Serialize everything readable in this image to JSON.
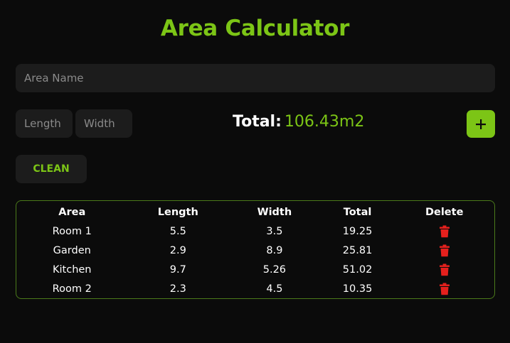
{
  "app": {
    "title": "Area Calculator"
  },
  "form": {
    "area_name_placeholder": "Area Name",
    "length_placeholder": "Length",
    "width_placeholder": "Width",
    "total_label": "Total:",
    "total_value": "106.43m2",
    "add_icon": "plus-icon",
    "clean_label": "CLEAN"
  },
  "colors": {
    "accent": "#7cc516",
    "background": "#0b0b0b",
    "field": "#1c1c1c",
    "delete": "#e5201d"
  },
  "table": {
    "headers": [
      "Area",
      "Length",
      "Width",
      "Total",
      "Delete"
    ],
    "rows": [
      {
        "area": "Room 1",
        "length": "5.5",
        "width": "3.5",
        "total": "19.25",
        "delete_icon": "trash-icon"
      },
      {
        "area": "Garden",
        "length": "2.9",
        "width": "8.9",
        "total": "25.81",
        "delete_icon": "trash-icon"
      },
      {
        "area": "Kitchen",
        "length": "9.7",
        "width": "5.26",
        "total": "51.02",
        "delete_icon": "trash-icon"
      },
      {
        "area": "Room 2",
        "length": "2.3",
        "width": "4.5",
        "total": "10.35",
        "delete_icon": "trash-icon"
      }
    ]
  }
}
